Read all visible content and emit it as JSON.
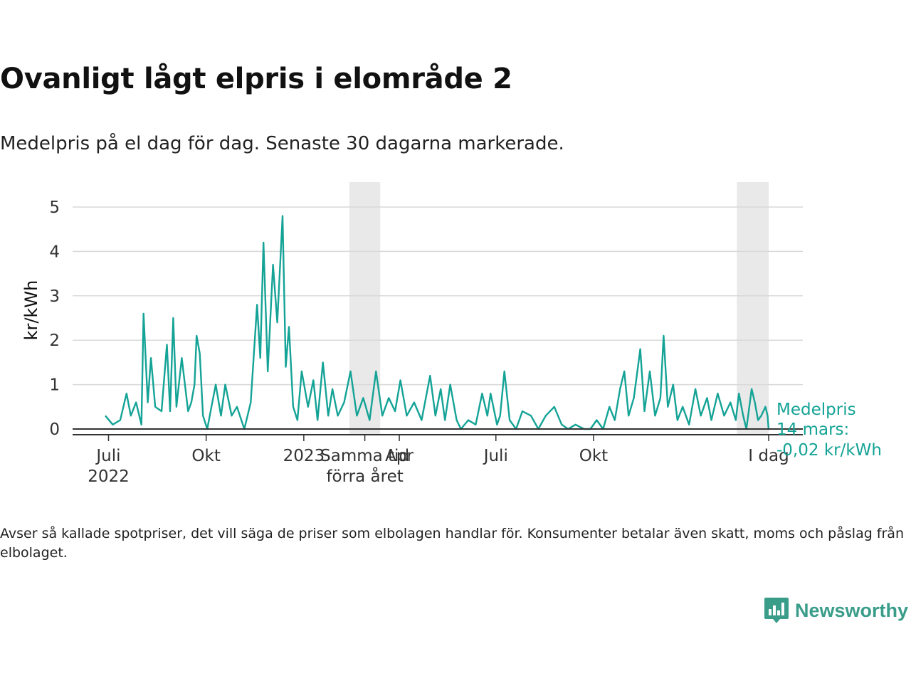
{
  "title": "Ovanligt lågt elpris i elområde 2",
  "subtitle": "Medelpris på el dag för dag.  Senaste 30 dagarna markerade.",
  "note": "Avser så kallade spotpriser, det vill säga de priser som elbolagen handlar för. Konsumenter betalar även skatt, moms och påslag från elbolaget.",
  "brand": {
    "name": "Newsworthy",
    "icon": "newsworthy-chart-bubble-icon"
  },
  "chart_data": {
    "type": "line",
    "ylabel": "kr/kWh",
    "xlabel": "",
    "ylim": [
      0,
      5
    ],
    "y_ticks": [
      0,
      1,
      2,
      3,
      4,
      5
    ],
    "grid": true,
    "line_color": "#14a396",
    "shade_color": "#e9e9e9",
    "x_range": [
      "2022-06-28",
      "2024-03-14"
    ],
    "x_ticks": [
      {
        "date": "2022-07-01",
        "label": "Juli",
        "sub": "2022"
      },
      {
        "date": "2022-10-01",
        "label": "Okt"
      },
      {
        "date": "2023-01-01",
        "label": "2023"
      },
      {
        "date": "2023-04-01",
        "label": "Apr"
      },
      {
        "date": "2023-07-01",
        "label": "Juli"
      },
      {
        "date": "2023-10-01",
        "label": "Okt"
      },
      {
        "date": "2024-03-14",
        "label": "I dag"
      }
    ],
    "shaded_periods": [
      {
        "from": "2023-02-13",
        "to": "2023-03-14",
        "label": "Samma tid",
        "sub": "förra året"
      },
      {
        "from": "2024-02-13",
        "to": "2024-03-14"
      }
    ],
    "annotation": {
      "line1": "Medelpris",
      "line2": "14 mars:",
      "line3": "-0,02 kr/kWh",
      "value": -0.02
    },
    "series": [
      {
        "anchors": [
          [
            "2022-06-28",
            0.3
          ],
          [
            "2022-07-05",
            0.1
          ],
          [
            "2022-07-12",
            0.2
          ],
          [
            "2022-07-18",
            0.8
          ],
          [
            "2022-07-22",
            0.3
          ],
          [
            "2022-07-27",
            0.6
          ],
          [
            "2022-08-01",
            0.1
          ],
          [
            "2022-08-03",
            2.6
          ],
          [
            "2022-08-07",
            0.6
          ],
          [
            "2022-08-10",
            1.6
          ],
          [
            "2022-08-14",
            0.5
          ],
          [
            "2022-08-20",
            0.4
          ],
          [
            "2022-08-25",
            1.9
          ],
          [
            "2022-08-28",
            0.4
          ],
          [
            "2022-08-31",
            2.5
          ],
          [
            "2022-09-03",
            0.5
          ],
          [
            "2022-09-08",
            1.6
          ],
          [
            "2022-09-14",
            0.4
          ],
          [
            "2022-09-17",
            0.6
          ],
          [
            "2022-09-20",
            1.0
          ],
          [
            "2022-09-22",
            2.1
          ],
          [
            "2022-09-25",
            1.7
          ],
          [
            "2022-09-28",
            0.3
          ],
          [
            "2022-10-02",
            0.0
          ],
          [
            "2022-10-06",
            0.5
          ],
          [
            "2022-10-10",
            1.0
          ],
          [
            "2022-10-15",
            0.3
          ],
          [
            "2022-10-19",
            1.0
          ],
          [
            "2022-10-25",
            0.3
          ],
          [
            "2022-10-30",
            0.5
          ],
          [
            "2022-11-06",
            0.0
          ],
          [
            "2022-11-12",
            0.6
          ],
          [
            "2022-11-18",
            2.8
          ],
          [
            "2022-11-21",
            1.6
          ],
          [
            "2022-11-24",
            4.2
          ],
          [
            "2022-11-28",
            1.3
          ],
          [
            "2022-12-03",
            3.7
          ],
          [
            "2022-12-07",
            2.4
          ],
          [
            "2022-12-12",
            4.8
          ],
          [
            "2022-12-15",
            1.4
          ],
          [
            "2022-12-18",
            2.3
          ],
          [
            "2022-12-22",
            0.5
          ],
          [
            "2022-12-26",
            0.2
          ],
          [
            "2022-12-30",
            1.3
          ],
          [
            "2023-01-05",
            0.5
          ],
          [
            "2023-01-10",
            1.1
          ],
          [
            "2023-01-14",
            0.2
          ],
          [
            "2023-01-19",
            1.5
          ],
          [
            "2023-01-24",
            0.3
          ],
          [
            "2023-01-28",
            0.9
          ],
          [
            "2023-02-02",
            0.3
          ],
          [
            "2023-02-08",
            0.6
          ],
          [
            "2023-02-14",
            1.3
          ],
          [
            "2023-02-20",
            0.3
          ],
          [
            "2023-02-26",
            0.7
          ],
          [
            "2023-03-04",
            0.2
          ],
          [
            "2023-03-10",
            1.3
          ],
          [
            "2023-03-16",
            0.3
          ],
          [
            "2023-03-22",
            0.7
          ],
          [
            "2023-03-28",
            0.4
          ],
          [
            "2023-04-02",
            1.1
          ],
          [
            "2023-04-08",
            0.3
          ],
          [
            "2023-04-15",
            0.6
          ],
          [
            "2023-04-22",
            0.2
          ],
          [
            "2023-04-30",
            1.2
          ],
          [
            "2023-05-05",
            0.3
          ],
          [
            "2023-05-10",
            0.9
          ],
          [
            "2023-05-14",
            0.2
          ],
          [
            "2023-05-19",
            1.0
          ],
          [
            "2023-05-25",
            0.2
          ],
          [
            "2023-05-29",
            0.0
          ],
          [
            "2023-06-05",
            0.2
          ],
          [
            "2023-06-12",
            0.1
          ],
          [
            "2023-06-18",
            0.8
          ],
          [
            "2023-06-23",
            0.3
          ],
          [
            "2023-06-26",
            0.8
          ],
          [
            "2023-07-02",
            0.1
          ],
          [
            "2023-07-05",
            0.3
          ],
          [
            "2023-07-09",
            1.3
          ],
          [
            "2023-07-14",
            0.2
          ],
          [
            "2023-07-20",
            0.0
          ],
          [
            "2023-07-26",
            0.4
          ],
          [
            "2023-08-03",
            0.3
          ],
          [
            "2023-08-10",
            0.0
          ],
          [
            "2023-08-17",
            0.3
          ],
          [
            "2023-08-25",
            0.5
          ],
          [
            "2023-09-01",
            0.1
          ],
          [
            "2023-09-07",
            0.0
          ],
          [
            "2023-09-14",
            0.1
          ],
          [
            "2023-09-22",
            0.0
          ],
          [
            "2023-09-28",
            0.0
          ],
          [
            "2023-10-04",
            0.2
          ],
          [
            "2023-10-10",
            0.0
          ],
          [
            "2023-10-16",
            0.5
          ],
          [
            "2023-10-21",
            0.2
          ],
          [
            "2023-10-26",
            0.9
          ],
          [
            "2023-10-30",
            1.3
          ],
          [
            "2023-11-03",
            0.3
          ],
          [
            "2023-11-08",
            0.7
          ],
          [
            "2023-11-14",
            1.8
          ],
          [
            "2023-11-18",
            0.4
          ],
          [
            "2023-11-23",
            1.3
          ],
          [
            "2023-11-28",
            0.3
          ],
          [
            "2023-12-03",
            0.7
          ],
          [
            "2023-12-06",
            2.1
          ],
          [
            "2023-12-10",
            0.5
          ],
          [
            "2023-12-15",
            1.0
          ],
          [
            "2023-12-19",
            0.2
          ],
          [
            "2023-12-24",
            0.5
          ],
          [
            "2023-12-30",
            0.1
          ],
          [
            "2024-01-05",
            0.9
          ],
          [
            "2024-01-10",
            0.3
          ],
          [
            "2024-01-16",
            0.7
          ],
          [
            "2024-01-20",
            0.2
          ],
          [
            "2024-01-26",
            0.8
          ],
          [
            "2024-02-01",
            0.3
          ],
          [
            "2024-02-07",
            0.6
          ],
          [
            "2024-02-12",
            0.2
          ],
          [
            "2024-02-15",
            0.8
          ],
          [
            "2024-02-19",
            0.3
          ],
          [
            "2024-02-22",
            0.0
          ],
          [
            "2024-02-27",
            0.9
          ],
          [
            "2024-03-01",
            0.6
          ],
          [
            "2024-03-04",
            0.2
          ],
          [
            "2024-03-07",
            0.3
          ],
          [
            "2024-03-11",
            0.5
          ],
          [
            "2024-03-13",
            0.3
          ],
          [
            "2024-03-14",
            -0.02
          ]
        ]
      }
    ]
  }
}
